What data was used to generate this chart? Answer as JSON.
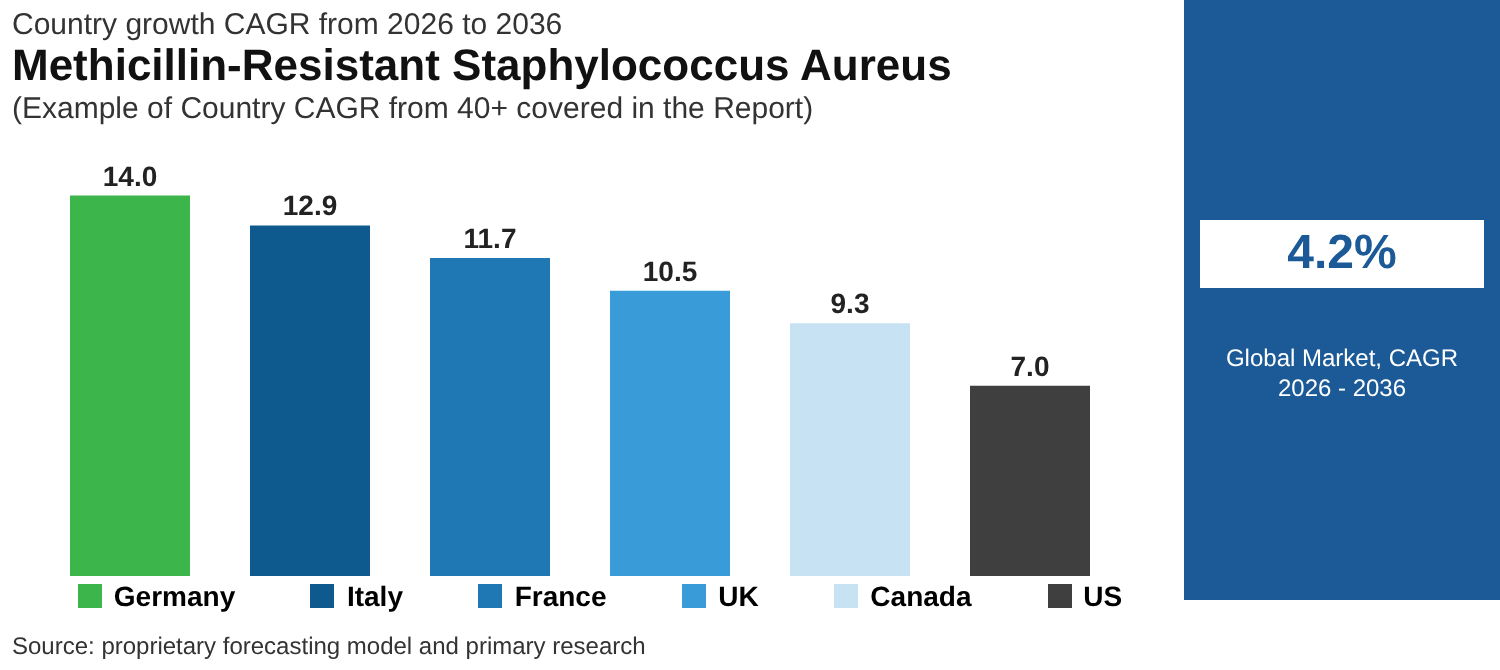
{
  "chart_data": {
    "type": "bar",
    "title": "Methicillin-Resistant Staphylococcus Aureus",
    "subtitle": "Country growth CAGR from 2026 to 2036",
    "annotations": [
      "(Example of Country CAGR from 40+ covered in the Report)",
      "4.2%",
      "Global Market, CAGR 2026 - 2036",
      "Source: proprietary forecasting model and primary research"
    ],
    "categories": [
      "Germany",
      "Italy",
      "France",
      "UK",
      "Canada",
      "US"
    ],
    "values": [
      14.0,
      12.9,
      11.7,
      10.5,
      9.3,
      7.0
    ],
    "colors": [
      "#3cb54a",
      "#0e5a8f",
      "#1f77b4",
      "#3a9bd9",
      "#c6e2f3",
      "#3f3f3f"
    ],
    "value_labels": [
      "14.0",
      "12.9",
      "11.7",
      "10.5",
      "9.3",
      "7.0"
    ]
  }
}
